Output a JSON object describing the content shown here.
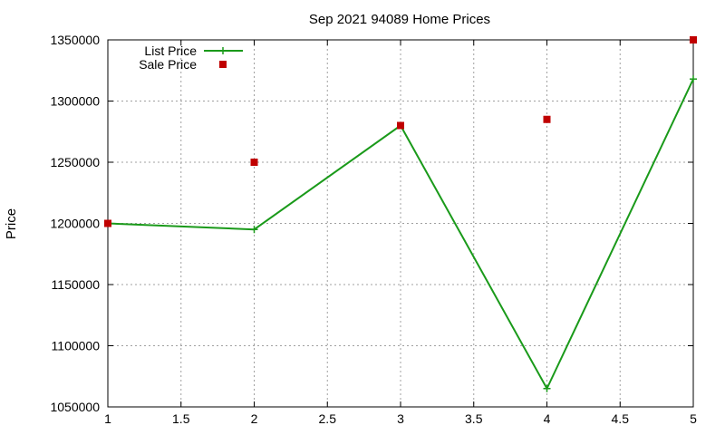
{
  "chart_data": {
    "type": "line",
    "title": "Sep 2021 94089 Home Prices",
    "xlabel": "",
    "ylabel": "Price",
    "xlim": [
      1,
      5
    ],
    "ylim": [
      1050000,
      1350000
    ],
    "x_ticks": [
      1,
      1.5,
      2,
      2.5,
      3,
      3.5,
      4,
      4.5,
      5
    ],
    "x_tick_labels": [
      "1",
      "1.5",
      "2",
      "2.5",
      "3",
      "3.5",
      "4",
      "4.5",
      "5"
    ],
    "y_ticks": [
      1050000,
      1100000,
      1150000,
      1200000,
      1250000,
      1300000,
      1350000
    ],
    "y_tick_labels": [
      "1050000",
      "1100000",
      "1150000",
      "1200000",
      "1250000",
      "1300000",
      "1350000"
    ],
    "grid": true,
    "legend_position": "top-left",
    "series": [
      {
        "name": "List Price",
        "style": "line+cross",
        "color": "#1a9a1a",
        "x": [
          1,
          2,
          3,
          4,
          5
        ],
        "y": [
          1200000,
          1195000,
          1280000,
          1065000,
          1318000
        ]
      },
      {
        "name": "Sale Price",
        "style": "square",
        "color": "#c00000",
        "x": [
          1,
          2,
          3,
          4,
          5
        ],
        "y": [
          1200000,
          1250000,
          1280000,
          1285000,
          1350000
        ]
      }
    ]
  }
}
